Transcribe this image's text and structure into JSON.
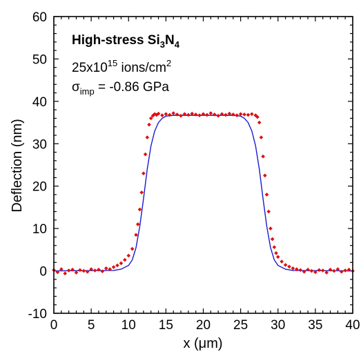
{
  "chart_data": {
    "type": "scatter",
    "xlabel": "x (μm)",
    "ylabel": "Deflection (nm)",
    "xlim": [
      0,
      40
    ],
    "ylim": [
      -10,
      60
    ],
    "xticks": [
      0,
      5,
      10,
      15,
      20,
      25,
      30,
      35,
      40
    ],
    "yticks": [
      -10,
      0,
      10,
      20,
      30,
      40,
      50,
      60
    ],
    "grid": false,
    "annotations": {
      "material": {
        "main": "High-stress Si",
        "sub1": "3",
        "mid": "N",
        "sub2": "4"
      },
      "dose": {
        "main": "25x10",
        "sup1": "15",
        "mid": " ions/cm",
        "sup2": "2"
      },
      "stress": {
        "sym": "σ",
        "sub": "imp",
        "rest": " = -0.86 GPa"
      }
    },
    "series": [
      {
        "kind": "points",
        "color": "#dd1111",
        "x": [
          0.0,
          0.5,
          1.0,
          1.5,
          2.0,
          2.5,
          3.0,
          3.5,
          4.0,
          4.5,
          5.0,
          5.5,
          6.0,
          6.5,
          7.0,
          7.5,
          8.0,
          8.5,
          9.0,
          9.5,
          10.0,
          10.5,
          11.0,
          11.25,
          11.5,
          11.75,
          12.0,
          12.25,
          12.5,
          12.75,
          13.0,
          13.25,
          13.5,
          13.75,
          14.0,
          14.5,
          15.0,
          15.5,
          16.0,
          16.5,
          17.0,
          17.5,
          18.0,
          18.5,
          19.0,
          19.5,
          20.0,
          20.5,
          21.0,
          21.5,
          22.0,
          22.5,
          23.0,
          23.5,
          24.0,
          24.5,
          25.0,
          25.5,
          26.0,
          26.5,
          27.0,
          27.25,
          27.5,
          27.75,
          28.0,
          28.25,
          28.5,
          28.75,
          29.0,
          29.25,
          29.5,
          29.75,
          30.0,
          30.5,
          31.0,
          31.5,
          32.0,
          32.5,
          33.0,
          33.5,
          34.0,
          34.5,
          35.0,
          35.5,
          36.0,
          36.5,
          37.0,
          37.5,
          38.0,
          38.5,
          39.0,
          39.5,
          40.0
        ],
        "y": [
          0.2,
          -0.3,
          0.4,
          -0.6,
          0.1,
          0.3,
          -0.4,
          0.2,
          0.0,
          -0.2,
          0.4,
          0.1,
          0.3,
          -0.1,
          0.6,
          0.4,
          0.9,
          1.3,
          1.8,
          2.6,
          3.6,
          5.2,
          8.5,
          11.0,
          14.5,
          18.5,
          23.0,
          27.5,
          31.5,
          34.5,
          36.0,
          36.6,
          37.0,
          36.8,
          37.1,
          36.7,
          37.0,
          36.8,
          37.2,
          36.9,
          36.6,
          37.0,
          36.8,
          37.1,
          36.9,
          36.7,
          37.0,
          36.8,
          37.2,
          36.9,
          36.6,
          37.0,
          36.8,
          37.1,
          36.9,
          36.7,
          37.0,
          36.9,
          36.8,
          37.0,
          36.7,
          36.3,
          35.0,
          31.5,
          27.0,
          22.5,
          18.0,
          14.0,
          10.0,
          7.5,
          5.6,
          4.2,
          3.3,
          2.2,
          1.4,
          1.0,
          0.6,
          0.4,
          0.2,
          -0.2,
          0.3,
          0.0,
          -0.3,
          0.2,
          0.1,
          -0.4,
          0.3,
          0.0,
          0.4,
          -0.2,
          0.1,
          0.3,
          0.0
        ]
      },
      {
        "kind": "line",
        "color": "#1a1acc",
        "x": [
          0,
          8,
          9,
          10,
          10.5,
          11,
          11.5,
          12,
          12.5,
          13,
          13.5,
          14,
          14.5,
          15,
          16,
          18,
          20,
          22,
          24,
          25,
          25.5,
          26,
          26.5,
          27,
          27.5,
          28,
          28.5,
          29,
          29.5,
          30,
          31,
          32,
          40
        ],
        "y": [
          0,
          0.1,
          0.4,
          1.3,
          2.6,
          5.5,
          10.5,
          17.0,
          24.0,
          29.5,
          33.0,
          35.0,
          36.0,
          36.5,
          36.7,
          36.7,
          36.7,
          36.7,
          36.7,
          36.5,
          36.0,
          35.0,
          33.0,
          29.5,
          24.0,
          17.0,
          10.5,
          5.5,
          2.6,
          1.3,
          0.4,
          0.1,
          0
        ]
      }
    ]
  }
}
